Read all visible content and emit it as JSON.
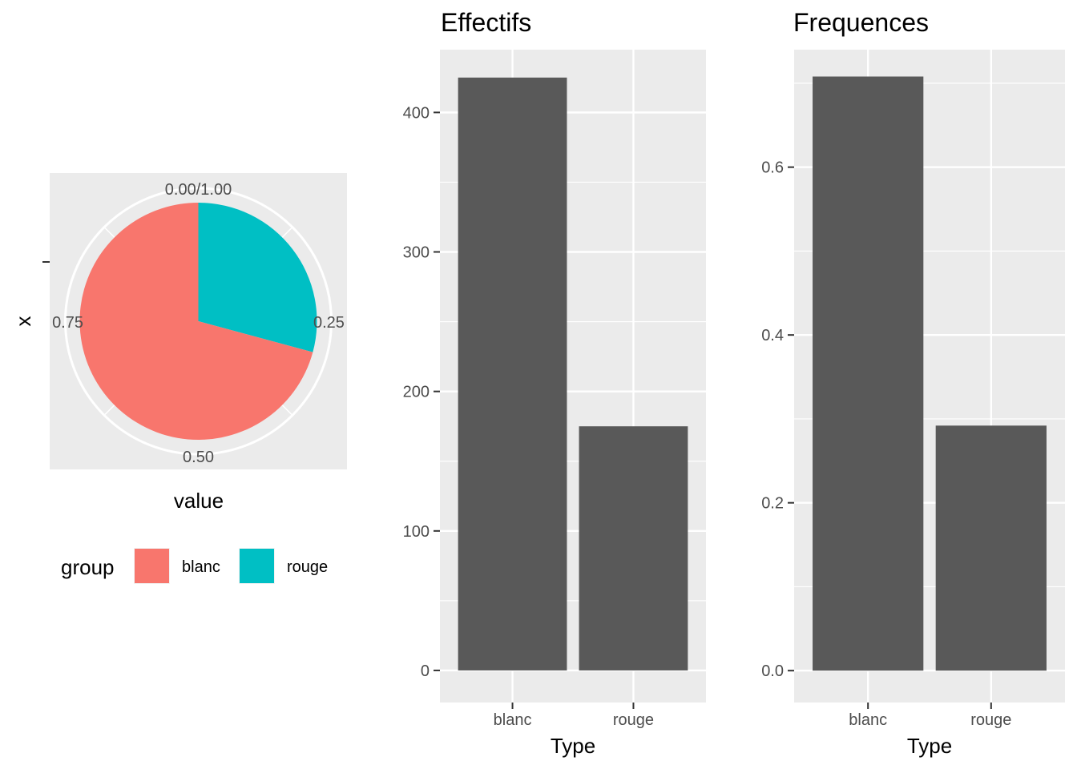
{
  "chart_data": [
    {
      "type": "pie",
      "xlabel": "value",
      "ylabel": "x",
      "theta_ticks": [
        "0.00/1.00",
        "0.25",
        "0.50",
        "0.75"
      ],
      "slices": [
        {
          "label": "blanc",
          "value": 0.708,
          "color": "#F8766D"
        },
        {
          "label": "rouge",
          "value": 0.292,
          "color": "#00BFC4"
        }
      ],
      "legend": {
        "title": "group",
        "position": "bottom",
        "entries": [
          "blanc",
          "rouge"
        ]
      },
      "background": "#EBEBEB",
      "grid": true
    },
    {
      "type": "bar",
      "title": "Effectifs",
      "xlabel": "Type",
      "ylabel": "",
      "categories": [
        "blanc",
        "rouge"
      ],
      "values": [
        425,
        175
      ],
      "ylim": [
        -23,
        445
      ],
      "yticks": [
        0,
        100,
        200,
        300,
        400
      ],
      "bar_color": "#595959",
      "background": "#EBEBEB",
      "grid": true
    },
    {
      "type": "bar",
      "title": "Frequences",
      "xlabel": "Type",
      "ylabel": "",
      "categories": [
        "blanc",
        "rouge"
      ],
      "values": [
        0.708,
        0.292
      ],
      "ylim": [
        -0.038,
        0.74
      ],
      "yticks": [
        0.0,
        0.2,
        0.4,
        0.6
      ],
      "ytick_labels": [
        "0.0",
        "0.2",
        "0.4",
        "0.6"
      ],
      "bar_color": "#595959",
      "background": "#EBEBEB",
      "grid": true
    }
  ]
}
